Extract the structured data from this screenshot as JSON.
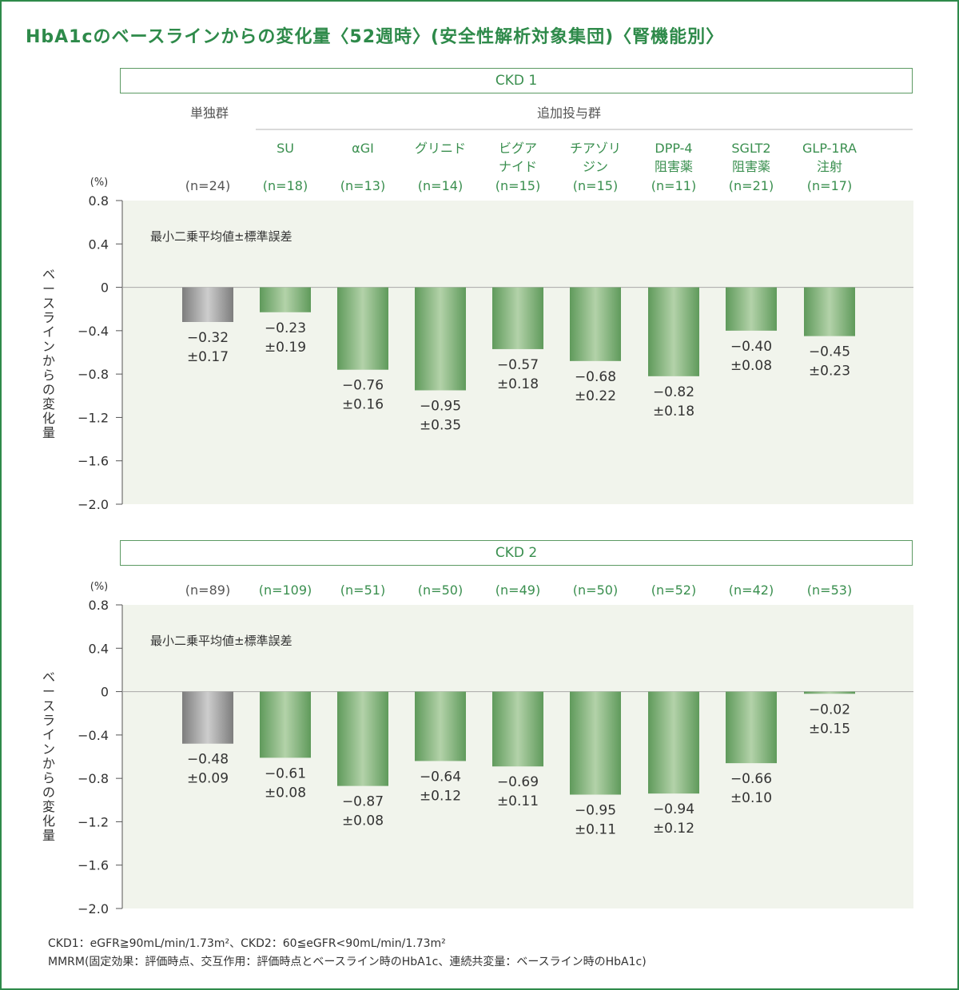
{
  "title": "HbA1cのベースラインからの変化量〈52週時〉(安全性解析対象集団)〈腎機能別〉",
  "header": {
    "mono_label": "単独群",
    "addon_label": "追加投与群",
    "groups": [
      {
        "line1": "",
        "line2": ""
      },
      {
        "line1": "SU",
        "line2": ""
      },
      {
        "line1": "αGI",
        "line2": ""
      },
      {
        "line1": "グリニド",
        "line2": ""
      },
      {
        "line1": "ビグア",
        "line2": "ナイド"
      },
      {
        "line1": "チアゾリ",
        "line2": "ジン"
      },
      {
        "line1": "DPP-4",
        "line2": "阻害薬"
      },
      {
        "line1": "SGLT2",
        "line2": "阻害薬"
      },
      {
        "line1": "GLP-1RA",
        "line2": "注射"
      }
    ]
  },
  "annotation": "最小二乗平均値±標準誤差",
  "footnotes": [
    "CKD1：eGFR≧90mL/min/1.73m²、CKD2：60≦eGFR<90mL/min/1.73m²",
    "MMRM(固定効果：評価時点、交互作用：評価時点とベースライン時のHbA1c、連続共変量：ベースライン時のHbA1c)"
  ],
  "colors": {
    "accent": "#2e8a4a",
    "bar_green": "#6fa86b",
    "bar_gray": "#8c8c8c",
    "plot_bg": "#f1f4ec"
  },
  "chart_data": [
    {
      "type": "bar",
      "panel_label": "CKD 1",
      "categories": [
        "単独群",
        "SU",
        "αGI",
        "グリニド",
        "ビグアナイド",
        "チアゾリジン",
        "DPP-4阻害薬",
        "SGLT2阻害薬",
        "GLP-1RA注射"
      ],
      "n_labels": [
        "(n=24)",
        "(n=18)",
        "(n=13)",
        "(n=14)",
        "(n=15)",
        "(n=15)",
        "(n=11)",
        "(n=21)",
        "(n=17)"
      ],
      "values": [
        -0.32,
        -0.23,
        -0.76,
        -0.95,
        -0.57,
        -0.68,
        -0.82,
        -0.4,
        -0.45
      ],
      "value_labels": [
        "−0.32",
        "−0.23",
        "−0.76",
        "−0.95",
        "−0.57",
        "−0.68",
        "−0.82",
        "−0.40",
        "−0.45"
      ],
      "se_labels": [
        "±0.17",
        "±0.19",
        "±0.16",
        "±0.35",
        "±0.18",
        "±0.22",
        "±0.18",
        "±0.08",
        "±0.23"
      ],
      "ylabel": "ベースラインからの変化量",
      "yunit": "(%)",
      "ylim": [
        -2.0,
        0.8
      ],
      "ytick_values": [
        0.8,
        0.4,
        0,
        -0.4,
        -0.8,
        -1.2,
        -1.6,
        -2.0
      ],
      "ytick_labels": [
        "0.8",
        "0.4",
        "0",
        "−0.4",
        "−0.8",
        "−1.2",
        "−1.6",
        "−2.0"
      ]
    },
    {
      "type": "bar",
      "panel_label": "CKD 2",
      "categories": [
        "単独群",
        "SU",
        "αGI",
        "グリニド",
        "ビグアナイド",
        "チアゾリジン",
        "DPP-4阻害薬",
        "SGLT2阻害薬",
        "GLP-1RA注射"
      ],
      "n_labels": [
        "(n=89)",
        "(n=109)",
        "(n=51)",
        "(n=50)",
        "(n=49)",
        "(n=50)",
        "(n=52)",
        "(n=42)",
        "(n=53)"
      ],
      "values": [
        -0.48,
        -0.61,
        -0.87,
        -0.64,
        -0.69,
        -0.95,
        -0.94,
        -0.66,
        -0.02
      ],
      "value_labels": [
        "−0.48",
        "−0.61",
        "−0.87",
        "−0.64",
        "−0.69",
        "−0.95",
        "−0.94",
        "−0.66",
        "−0.02"
      ],
      "se_labels": [
        "±0.09",
        "±0.08",
        "±0.08",
        "±0.12",
        "±0.11",
        "±0.11",
        "±0.12",
        "±0.10",
        "±0.15"
      ],
      "ylabel": "ベースラインからの変化量",
      "yunit": "(%)",
      "ylim": [
        -2.0,
        0.8
      ],
      "ytick_values": [
        0.8,
        0.4,
        0,
        -0.4,
        -0.8,
        -1.2,
        -1.6,
        -2.0
      ],
      "ytick_labels": [
        "0.8",
        "0.4",
        "0",
        "−0.4",
        "−0.8",
        "−1.2",
        "−1.6",
        "−2.0"
      ]
    }
  ]
}
